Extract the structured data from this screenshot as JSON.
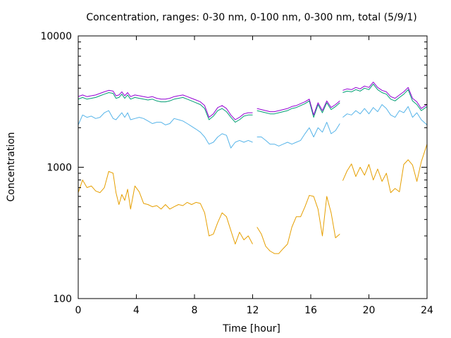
{
  "chart_data": {
    "type": "line",
    "title": "Concentration, ranges: 0-30 nm, 0-100 nm, 0-300 nm, total (5/9/1)",
    "xlabel": "Time [hour]",
    "ylabel": "Concentration",
    "xlim": [
      0,
      24
    ],
    "ylim": [
      100,
      10000
    ],
    "yscale": "log",
    "xticks": [
      0,
      4,
      8,
      12,
      16,
      20,
      24
    ],
    "xtick_labels": [
      "0",
      "4",
      "8",
      "12",
      "16",
      "20",
      "24"
    ],
    "yticks": [
      100,
      1000,
      10000
    ],
    "ytick_labels": [
      "100",
      "1000",
      "10000"
    ],
    "grid": false,
    "legend": "none",
    "series_colors": [
      "#e69f00",
      "#56b4e9",
      "#009e73",
      "#9400d3"
    ],
    "series": [
      {
        "x": [
          0.0,
          0.3,
          0.6,
          0.9,
          1.2,
          1.5,
          1.8,
          2.1,
          2.4,
          2.6,
          2.8,
          3.0,
          3.2,
          3.4,
          3.6,
          3.9,
          4.2,
          4.5,
          4.8,
          5.1,
          5.4,
          5.7,
          6.0,
          6.3,
          6.6,
          6.9,
          7.2,
          7.5,
          7.8,
          8.1,
          8.4,
          8.7,
          9.0,
          9.3,
          9.6,
          9.9,
          10.2,
          10.5,
          10.8,
          11.1,
          11.4,
          11.7,
          12.0,
          null,
          12.3,
          12.6,
          12.9,
          13.2,
          13.5,
          13.8,
          14.1,
          14.4,
          14.7,
          15.0,
          15.3,
          15.6,
          15.9,
          16.2,
          16.5,
          16.8,
          17.1,
          17.4,
          17.7,
          18.0,
          null,
          18.2,
          18.5,
          18.8,
          19.1,
          19.4,
          19.7,
          20.0,
          20.3,
          20.6,
          20.9,
          21.2,
          21.5,
          21.8,
          22.1,
          22.4,
          22.7,
          23.0,
          23.3,
          23.6,
          24.0
        ],
        "y": [
          640,
          800,
          700,
          720,
          660,
          640,
          700,
          930,
          900,
          640,
          520,
          620,
          560,
          680,
          480,
          720,
          650,
          530,
          520,
          500,
          510,
          480,
          520,
          480,
          500,
          520,
          510,
          540,
          520,
          540,
          530,
          450,
          300,
          310,
          380,
          450,
          420,
          330,
          260,
          320,
          280,
          300,
          260,
          null,
          350,
          310,
          250,
          230,
          220,
          220,
          240,
          260,
          350,
          420,
          420,
          500,
          610,
          600,
          480,
          300,
          600,
          450,
          290,
          310,
          null,
          790,
          940,
          1060,
          850,
          1000,
          870,
          1050,
          800,
          970,
          780,
          900,
          640,
          690,
          650,
          1050,
          1140,
          1040,
          780,
          1100,
          1500
        ]
      },
      {
        "x": [
          0.0,
          0.3,
          0.6,
          0.9,
          1.2,
          1.5,
          1.8,
          2.1,
          2.4,
          2.6,
          2.8,
          3.0,
          3.2,
          3.4,
          3.6,
          3.9,
          4.2,
          4.5,
          4.8,
          5.1,
          5.4,
          5.7,
          6.0,
          6.3,
          6.6,
          6.9,
          7.2,
          7.5,
          7.8,
          8.1,
          8.4,
          8.7,
          9.0,
          9.3,
          9.6,
          9.9,
          10.2,
          10.5,
          10.8,
          11.1,
          11.4,
          11.7,
          12.0,
          null,
          12.3,
          12.6,
          12.9,
          13.2,
          13.5,
          13.8,
          14.1,
          14.4,
          14.7,
          15.0,
          15.3,
          15.6,
          15.9,
          16.2,
          16.5,
          16.8,
          17.1,
          17.4,
          17.7,
          18.0,
          null,
          18.2,
          18.5,
          18.8,
          19.1,
          19.4,
          19.7,
          20.0,
          20.3,
          20.6,
          20.9,
          21.2,
          21.5,
          21.8,
          22.1,
          22.4,
          22.7,
          23.0,
          23.3,
          23.6,
          24.0
        ],
        "y": [
          2100,
          2500,
          2400,
          2450,
          2350,
          2400,
          2600,
          2700,
          2350,
          2300,
          2450,
          2600,
          2400,
          2600,
          2300,
          2350,
          2400,
          2350,
          2250,
          2150,
          2200,
          2200,
          2100,
          2150,
          2350,
          2300,
          2250,
          2150,
          2050,
          1950,
          1850,
          1700,
          1500,
          1550,
          1700,
          1800,
          1750,
          1400,
          1550,
          1600,
          1550,
          1600,
          1550,
          null,
          1700,
          1700,
          1600,
          1500,
          1500,
          1450,
          1500,
          1550,
          1500,
          1550,
          1600,
          1800,
          2000,
          1700,
          2000,
          1850,
          2200,
          1800,
          1900,
          2150,
          null,
          2400,
          2550,
          2500,
          2700,
          2550,
          2800,
          2550,
          2850,
          2650,
          3000,
          2800,
          2500,
          2400,
          2700,
          2600,
          2900,
          2400,
          2600,
          2300,
          2100
        ]
      },
      {
        "x": [
          0.0,
          0.3,
          0.6,
          0.9,
          1.2,
          1.5,
          1.8,
          2.1,
          2.4,
          2.6,
          2.8,
          3.0,
          3.2,
          3.4,
          3.6,
          3.9,
          4.2,
          4.5,
          4.8,
          5.1,
          5.4,
          5.7,
          6.0,
          6.3,
          6.6,
          6.9,
          7.2,
          7.5,
          7.8,
          8.1,
          8.4,
          8.7,
          9.0,
          9.3,
          9.6,
          9.9,
          10.2,
          10.5,
          10.8,
          11.1,
          11.4,
          11.7,
          12.0,
          null,
          12.3,
          12.6,
          12.9,
          13.2,
          13.5,
          13.8,
          14.1,
          14.4,
          14.7,
          15.0,
          15.3,
          15.6,
          15.9,
          16.2,
          16.5,
          16.8,
          17.1,
          17.4,
          17.7,
          18.0,
          null,
          18.2,
          18.5,
          18.8,
          19.1,
          19.4,
          19.7,
          20.0,
          20.3,
          20.6,
          20.9,
          21.2,
          21.5,
          21.8,
          22.1,
          22.4,
          22.7,
          23.0,
          23.3,
          23.6,
          24.0
        ],
        "y": [
          3300,
          3400,
          3300,
          3350,
          3400,
          3500,
          3600,
          3700,
          3650,
          3350,
          3400,
          3600,
          3350,
          3550,
          3300,
          3400,
          3350,
          3300,
          3250,
          3300,
          3200,
          3150,
          3150,
          3200,
          3300,
          3350,
          3400,
          3300,
          3200,
          3100,
          3000,
          2800,
          2300,
          2450,
          2700,
          2800,
          2650,
          2400,
          2200,
          2300,
          2450,
          2500,
          2500,
          null,
          2700,
          2650,
          2600,
          2550,
          2550,
          2600,
          2650,
          2700,
          2800,
          2850,
          2950,
          3050,
          3200,
          2400,
          3000,
          2600,
          3100,
          2750,
          2900,
          3100,
          null,
          3700,
          3800,
          3750,
          3900,
          3800,
          4000,
          3900,
          4300,
          3900,
          3700,
          3600,
          3300,
          3200,
          3400,
          3600,
          3900,
          3200,
          3000,
          2700,
          2900
        ]
      },
      {
        "x": [
          0.0,
          0.3,
          0.6,
          0.9,
          1.2,
          1.5,
          1.8,
          2.1,
          2.4,
          2.6,
          2.8,
          3.0,
          3.2,
          3.4,
          3.6,
          3.9,
          4.2,
          4.5,
          4.8,
          5.1,
          5.4,
          5.7,
          6.0,
          6.3,
          6.6,
          6.9,
          7.2,
          7.5,
          7.8,
          8.1,
          8.4,
          8.7,
          9.0,
          9.3,
          9.6,
          9.9,
          10.2,
          10.5,
          10.8,
          11.1,
          11.4,
          11.7,
          12.0,
          null,
          12.3,
          12.6,
          12.9,
          13.2,
          13.5,
          13.8,
          14.1,
          14.4,
          14.7,
          15.0,
          15.3,
          15.6,
          15.9,
          16.2,
          16.5,
          16.8,
          17.1,
          17.4,
          17.7,
          18.0,
          null,
          18.2,
          18.5,
          18.8,
          19.1,
          19.4,
          19.7,
          20.0,
          20.3,
          20.6,
          20.9,
          21.2,
          21.5,
          21.8,
          22.1,
          22.4,
          22.7,
          23.0,
          23.3,
          23.6,
          24.0
        ],
        "y": [
          3450,
          3550,
          3450,
          3500,
          3550,
          3650,
          3750,
          3850,
          3800,
          3500,
          3550,
          3750,
          3500,
          3700,
          3450,
          3550,
          3500,
          3450,
          3400,
          3450,
          3350,
          3300,
          3300,
          3350,
          3450,
          3500,
          3550,
          3450,
          3350,
          3250,
          3150,
          2950,
          2400,
          2550,
          2850,
          2950,
          2800,
          2500,
          2300,
          2400,
          2550,
          2600,
          2600,
          null,
          2800,
          2750,
          2700,
          2650,
          2650,
          2700,
          2750,
          2800,
          2900,
          2950,
          3050,
          3150,
          3300,
          2500,
          3100,
          2700,
          3200,
          2850,
          3000,
          3200,
          null,
          3850,
          3950,
          3900,
          4050,
          3950,
          4150,
          4050,
          4450,
          4050,
          3850,
          3750,
          3450,
          3350,
          3550,
          3750,
          4050,
          3350,
          3150,
          2800,
          3000
        ]
      }
    ]
  }
}
